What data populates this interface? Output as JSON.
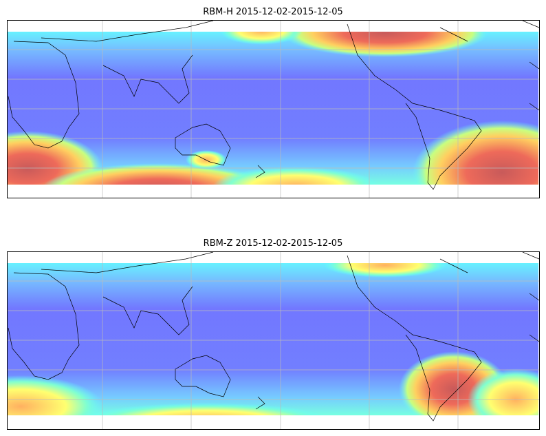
{
  "panels": [
    {
      "title": "RBM-H 2015-12-02-2015-12-05"
    },
    {
      "title": "RBM-Z 2015-12-02-2015-12-05"
    }
  ]
}
